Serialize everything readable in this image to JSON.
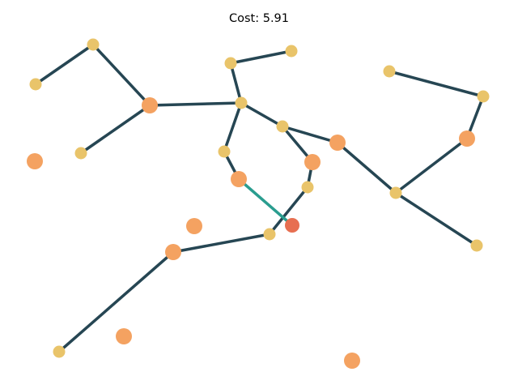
{
  "title": "Cost: 5.91",
  "colors": {
    "edge": "#264653",
    "highlight_edge": "#2a9d8f",
    "large_node": "#f4a261",
    "small_node": "#e9c46a",
    "highlight_node": "#e76f51"
  }
}
